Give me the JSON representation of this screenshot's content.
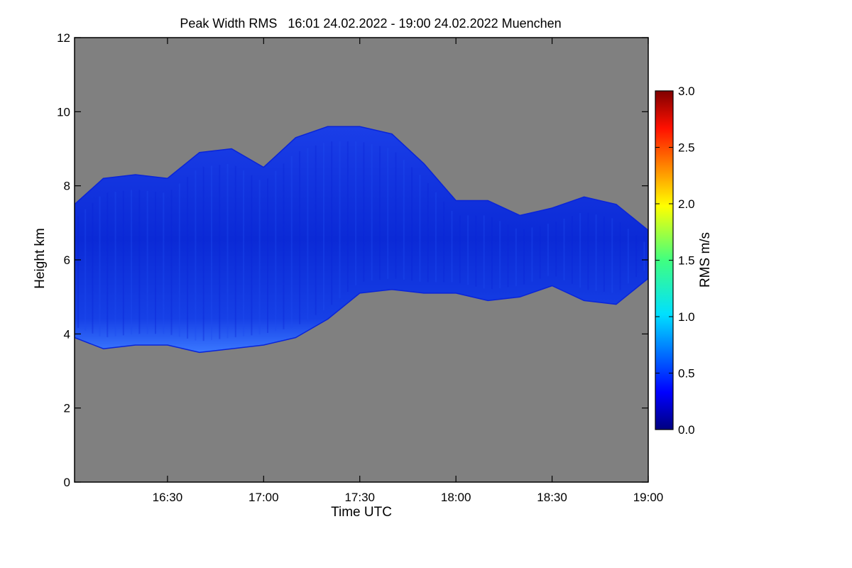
{
  "chart_data": {
    "type": "heatmap",
    "title": "Peak Width RMS   16:01 24.02.2022 - 19:00 24.02.2022 Muenchen",
    "xlabel": "Time UTC",
    "ylabel": "Height km",
    "x_ticks": [
      "16:30",
      "17:00",
      "17:30",
      "18:00",
      "18:30",
      "19:00"
    ],
    "x_tick_minutes": [
      30,
      60,
      90,
      120,
      150,
      180
    ],
    "xlim_minutes": [
      1,
      180
    ],
    "y_ticks": [
      0,
      2,
      4,
      6,
      8,
      10,
      12
    ],
    "ylim": [
      0,
      12
    ],
    "colorbar": {
      "label": "RMS m/s",
      "range": [
        0.0,
        3.0
      ],
      "ticks": [
        "0.0",
        "0.5",
        "1.0",
        "1.5",
        "2.0",
        "2.5",
        "3.0"
      ],
      "tick_values": [
        0,
        0.5,
        1.0,
        1.5,
        2.0,
        2.5,
        3.0
      ]
    },
    "colors": {
      "no_data": "#808080",
      "low": "#0a24d8",
      "mid": "#1e4cf0",
      "high": "#4a8cff"
    },
    "echo_region": {
      "minute": [
        1,
        10,
        20,
        30,
        40,
        50,
        60,
        70,
        80,
        90,
        100,
        110,
        120,
        130,
        140,
        150,
        160,
        170,
        180
      ],
      "top_km": [
        7.5,
        8.2,
        8.3,
        8.2,
        8.9,
        9.0,
        8.5,
        9.3,
        9.6,
        9.6,
        9.4,
        8.6,
        7.6,
        7.6,
        7.2,
        7.4,
        7.7,
        7.5,
        6.8
      ],
      "base_km": [
        3.9,
        3.6,
        3.7,
        3.7,
        3.5,
        3.6,
        3.7,
        3.9,
        4.4,
        5.1,
        5.2,
        5.1,
        5.1,
        4.9,
        5.0,
        5.3,
        4.9,
        4.8,
        5.5
      ]
    }
  }
}
